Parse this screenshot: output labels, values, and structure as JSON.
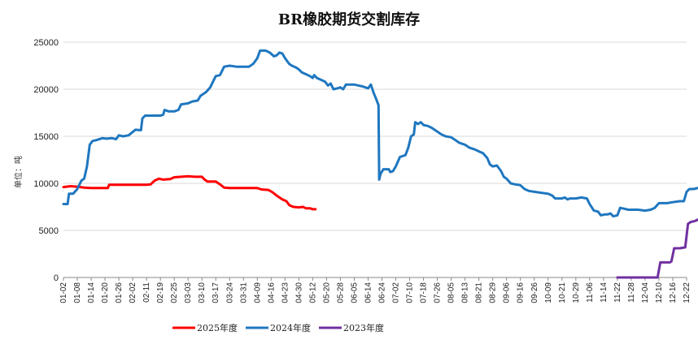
{
  "chart_data": {
    "type": "line",
    "title": "BR橡胶期货交割库存",
    "ylabel": "单位：吨",
    "xlabel": "",
    "ylim": [
      0,
      25000
    ],
    "yticks": [
      0,
      5000,
      10000,
      15000,
      20000,
      25000
    ],
    "xticks": [
      "01-02",
      "01-08",
      "01-14",
      "01-20",
      "01-26",
      "02-02",
      "02-11",
      "02-19",
      "02-25",
      "03-03",
      "03-10",
      "03-17",
      "03-24",
      "03-31",
      "04-09",
      "04-16",
      "04-23",
      "04-30",
      "05-12",
      "05-20",
      "05-28",
      "06-05",
      "06-14",
      "06-24",
      "07-02",
      "07-10",
      "07-18",
      "07-26",
      "08-05",
      "08-13",
      "08-21",
      "08-29",
      "09-06",
      "09-16",
      "09-26",
      "10-09",
      "10-21",
      "10-29",
      "11-06",
      "11-14",
      "11-22",
      "11-28",
      "12-04",
      "12-10",
      "12-16",
      "12-22"
    ],
    "grid": "horizontal",
    "legend_position": "bottom",
    "series": [
      {
        "name": "2025年度",
        "color": "#ff0000",
        "points": [
          [
            0,
            9600
          ],
          [
            0.5,
            9700
          ],
          [
            1,
            9650
          ],
          [
            1.5,
            9550
          ],
          [
            2,
            9500
          ],
          [
            3,
            9500
          ],
          [
            3.2,
            9500
          ],
          [
            3.3,
            9850
          ],
          [
            4,
            9850
          ],
          [
            5,
            9850
          ],
          [
            6,
            9850
          ],
          [
            6.3,
            9900
          ],
          [
            6.6,
            10300
          ],
          [
            6.9,
            10500
          ],
          [
            7.2,
            10400
          ],
          [
            7.7,
            10450
          ],
          [
            8,
            10650
          ],
          [
            8.5,
            10700
          ],
          [
            9,
            10750
          ],
          [
            9.5,
            10700
          ],
          [
            10,
            10700
          ],
          [
            10.2,
            10400
          ],
          [
            10.4,
            10200
          ],
          [
            11,
            10200
          ],
          [
            11.3,
            9900
          ],
          [
            11.6,
            9550
          ],
          [
            12,
            9500
          ],
          [
            13,
            9500
          ],
          [
            14,
            9500
          ],
          [
            14.3,
            9350
          ],
          [
            14.8,
            9300
          ],
          [
            15.1,
            9050
          ],
          [
            15.4,
            8700
          ],
          [
            15.8,
            8300
          ],
          [
            16.1,
            8100
          ],
          [
            16.3,
            7700
          ],
          [
            16.6,
            7500
          ],
          [
            17,
            7450
          ],
          [
            17.3,
            7500
          ],
          [
            17.5,
            7350
          ],
          [
            17.8,
            7350
          ],
          [
            18,
            7250
          ],
          [
            18.2,
            7250
          ]
        ]
      },
      {
        "name": "2024年度",
        "color": "#1f77c0",
        "points": [
          [
            0,
            7800
          ],
          [
            0.3,
            7800
          ],
          [
            0.4,
            8900
          ],
          [
            0.7,
            8900
          ],
          [
            1,
            9400
          ],
          [
            1.3,
            10300
          ],
          [
            1.5,
            10500
          ],
          [
            1.7,
            11800
          ],
          [
            1.9,
            14100
          ],
          [
            2.1,
            14500
          ],
          [
            2.4,
            14600
          ],
          [
            2.8,
            14800
          ],
          [
            3.1,
            14750
          ],
          [
            3.5,
            14800
          ],
          [
            3.8,
            14700
          ],
          [
            4,
            15100
          ],
          [
            4.3,
            15000
          ],
          [
            4.7,
            15100
          ],
          [
            5.2,
            15700
          ],
          [
            5.6,
            15650
          ],
          [
            5.7,
            16900
          ],
          [
            5.9,
            17200
          ],
          [
            6.4,
            17200
          ],
          [
            7,
            17200
          ],
          [
            7.2,
            17300
          ],
          [
            7.3,
            17800
          ],
          [
            7.6,
            17650
          ],
          [
            8,
            17650
          ],
          [
            8.3,
            17800
          ],
          [
            8.5,
            18400
          ],
          [
            9,
            18500
          ],
          [
            9.3,
            18700
          ],
          [
            9.7,
            18800
          ],
          [
            9.9,
            19300
          ],
          [
            10.3,
            19700
          ],
          [
            10.6,
            20200
          ],
          [
            11,
            21400
          ],
          [
            11.3,
            21500
          ],
          [
            11.6,
            22400
          ],
          [
            12,
            22500
          ],
          [
            12.5,
            22400
          ],
          [
            13,
            22400
          ],
          [
            13.4,
            22400
          ],
          [
            13.7,
            22700
          ],
          [
            14,
            23300
          ],
          [
            14.2,
            24100
          ],
          [
            14.6,
            24100
          ],
          [
            14.9,
            23900
          ],
          [
            15.2,
            23500
          ],
          [
            15.4,
            23600
          ],
          [
            15.6,
            23900
          ],
          [
            15.8,
            23800
          ],
          [
            16,
            23300
          ],
          [
            16.3,
            22700
          ],
          [
            16.5,
            22500
          ],
          [
            16.8,
            22300
          ],
          [
            17,
            22100
          ],
          [
            17.2,
            21800
          ],
          [
            17.5,
            21600
          ],
          [
            17.8,
            21400
          ],
          [
            18,
            21200
          ],
          [
            18.1,
            21500
          ],
          [
            18.3,
            21200
          ],
          [
            18.6,
            21000
          ],
          [
            18.9,
            20800
          ],
          [
            19.1,
            20400
          ],
          [
            19.3,
            20600
          ],
          [
            19.5,
            20000
          ],
          [
            19.8,
            20100
          ],
          [
            20,
            20200
          ],
          [
            20.2,
            20000
          ],
          [
            20.4,
            20500
          ],
          [
            20.7,
            20500
          ],
          [
            21,
            20500
          ],
          [
            21.3,
            20400
          ],
          [
            21.6,
            20300
          ],
          [
            21.8,
            20200
          ],
          [
            22,
            20100
          ],
          [
            22.2,
            20500
          ],
          [
            22.4,
            19600
          ],
          [
            22.6,
            18900
          ],
          [
            22.75,
            18300
          ],
          [
            22.8,
            10400
          ],
          [
            22.9,
            11000
          ],
          [
            23.1,
            11500
          ],
          [
            23.3,
            11500
          ],
          [
            23.5,
            11500
          ],
          [
            23.6,
            11200
          ],
          [
            23.8,
            11300
          ],
          [
            24,
            11800
          ],
          [
            24.3,
            12800
          ],
          [
            24.7,
            13000
          ],
          [
            24.9,
            13800
          ],
          [
            25.1,
            15000
          ],
          [
            25.3,
            15200
          ],
          [
            25.4,
            16500
          ],
          [
            25.6,
            16300
          ],
          [
            25.8,
            16500
          ],
          [
            26,
            16200
          ],
          [
            26.3,
            16100
          ],
          [
            26.6,
            15900
          ],
          [
            27,
            15500
          ],
          [
            27.3,
            15200
          ],
          [
            27.6,
            15000
          ],
          [
            28,
            14900
          ],
          [
            28.3,
            14600
          ],
          [
            28.6,
            14300
          ],
          [
            29,
            14100
          ],
          [
            29.3,
            13800
          ],
          [
            29.7,
            13600
          ],
          [
            30,
            13400
          ],
          [
            30.3,
            13200
          ],
          [
            30.6,
            12700
          ],
          [
            30.8,
            12000
          ],
          [
            31,
            11800
          ],
          [
            31.3,
            11900
          ],
          [
            31.6,
            11300
          ],
          [
            31.8,
            10700
          ],
          [
            32,
            10500
          ],
          [
            32.3,
            10000
          ],
          [
            32.6,
            9900
          ],
          [
            33,
            9800
          ],
          [
            33.3,
            9400
          ],
          [
            33.6,
            9200
          ],
          [
            34,
            9100
          ],
          [
            34.5,
            9000
          ],
          [
            35,
            8900
          ],
          [
            35.3,
            8700
          ],
          [
            35.5,
            8400
          ],
          [
            36,
            8400
          ],
          [
            36.2,
            8500
          ],
          [
            36.4,
            8300
          ],
          [
            36.6,
            8400
          ],
          [
            37,
            8400
          ],
          [
            37.4,
            8500
          ],
          [
            37.8,
            8400
          ],
          [
            38,
            7800
          ],
          [
            38.3,
            7100
          ],
          [
            38.6,
            7000
          ],
          [
            38.8,
            6600
          ],
          [
            39.1,
            6700
          ],
          [
            39.3,
            6700
          ],
          [
            39.5,
            6800
          ],
          [
            39.7,
            6500
          ],
          [
            40,
            6600
          ],
          [
            40.2,
            7400
          ],
          [
            40.5,
            7300
          ],
          [
            40.8,
            7200
          ],
          [
            41.2,
            7200
          ],
          [
            41.5,
            7200
          ],
          [
            42,
            7100
          ],
          [
            42.4,
            7200
          ],
          [
            42.7,
            7400
          ],
          [
            43,
            7900
          ],
          [
            43.3,
            7900
          ],
          [
            43.6,
            7900
          ],
          [
            44,
            8000
          ],
          [
            44.5,
            8100
          ],
          [
            44.8,
            8100
          ],
          [
            45,
            9100
          ],
          [
            45.2,
            9400
          ],
          [
            45.5,
            9400
          ],
          [
            45.8,
            9500
          ],
          [
            46.1,
            9600
          ],
          [
            46.4,
            9550
          ]
        ]
      },
      {
        "name": "2023年度",
        "color": "#7030a0",
        "points": [
          [
            40,
            0
          ],
          [
            40.5,
            0
          ],
          [
            41,
            0
          ],
          [
            41.5,
            0
          ],
          [
            42,
            0
          ],
          [
            42.5,
            0
          ],
          [
            42.9,
            0
          ],
          [
            43.1,
            1600
          ],
          [
            43.5,
            1600
          ],
          [
            43.8,
            1600
          ],
          [
            43.9,
            1700
          ],
          [
            44.1,
            3100
          ],
          [
            44.5,
            3100
          ],
          [
            44.9,
            3200
          ],
          [
            45.1,
            5700
          ],
          [
            45.3,
            5900
          ],
          [
            45.6,
            6000
          ],
          [
            45.9,
            6200
          ],
          [
            46.2,
            6400
          ]
        ]
      }
    ]
  }
}
